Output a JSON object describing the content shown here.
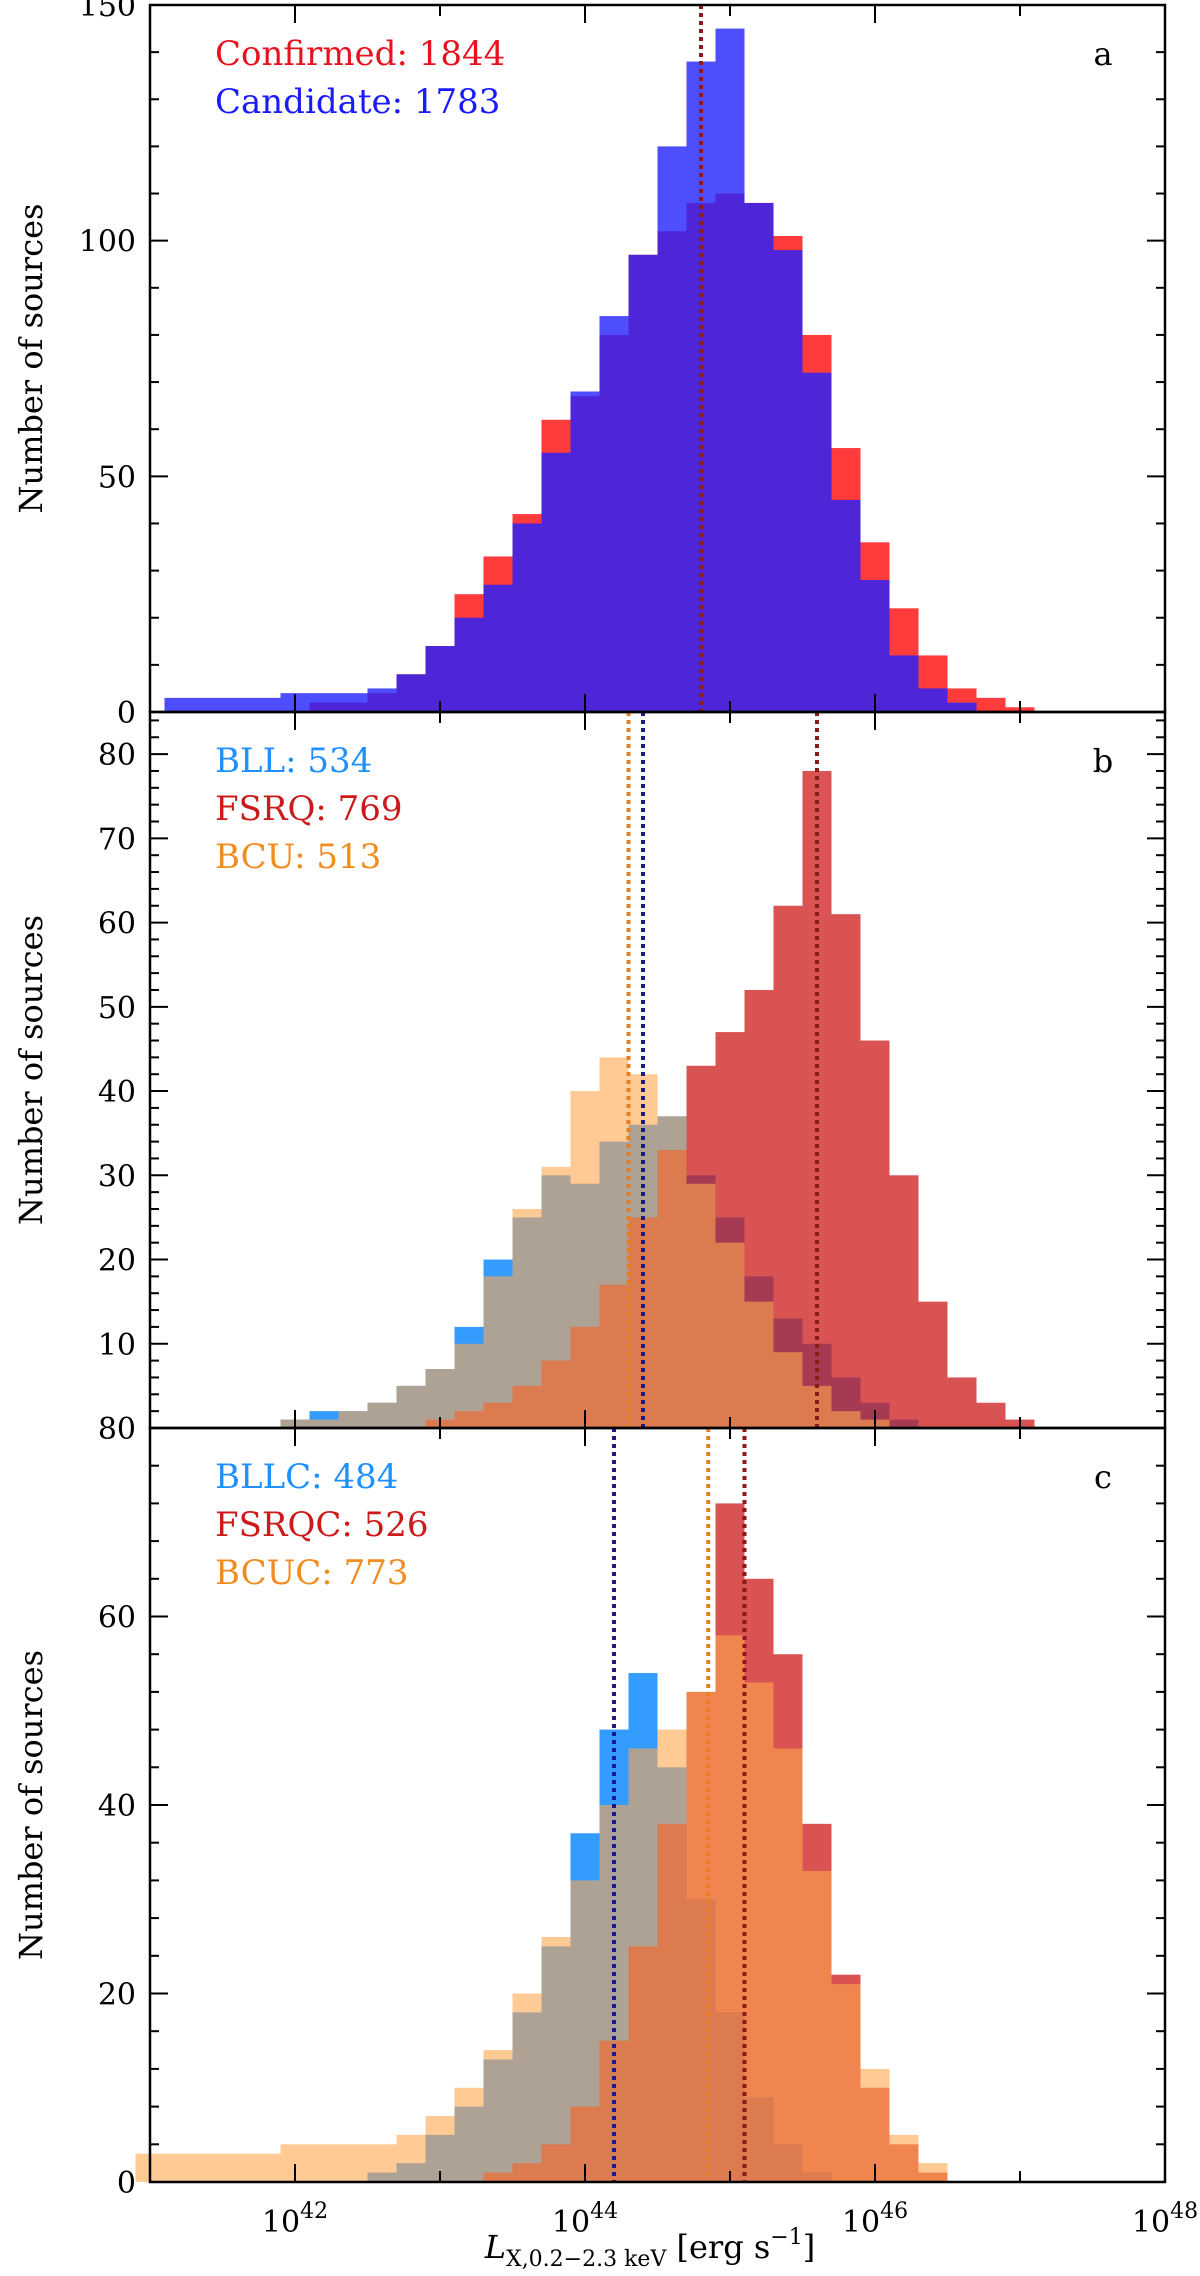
{
  "chart_data": [
    {
      "panel": "a",
      "type": "bar",
      "ylabel": "Number of sources",
      "ylim": [
        0,
        150
      ],
      "yticks": [
        0,
        50,
        100,
        150
      ],
      "x_range_log10": [
        41,
        48
      ],
      "legend_position": "top-left",
      "series": [
        {
          "name": "Confirmed: 1844",
          "legend_color": "#e8121e",
          "color": "#ff0a0a",
          "opacity": 0.8,
          "x_log10": [
            42.2,
            42.4,
            42.6,
            42.8,
            43.0,
            43.2,
            43.4,
            43.6,
            43.8,
            44.0,
            44.2,
            44.4,
            44.6,
            44.8,
            45.0,
            45.2,
            45.4,
            45.6,
            45.8,
            46.0,
            46.2,
            46.4,
            46.6,
            46.8,
            47.0
          ],
          "values": [
            2,
            2,
            4,
            8,
            14,
            25,
            33,
            42,
            62,
            67,
            80,
            97,
            102,
            108,
            110,
            108,
            101,
            80,
            56,
            36,
            22,
            12,
            5,
            3,
            1
          ]
        },
        {
          "name": "Candidate: 1783",
          "legend_color": "#1a1aff",
          "color": "#2222ff",
          "opacity": 0.8,
          "x_log10": [
            41.2,
            41.4,
            41.6,
            41.8,
            42.0,
            42.2,
            42.4,
            42.6,
            42.8,
            43.0,
            43.2,
            43.4,
            43.6,
            43.8,
            44.0,
            44.2,
            44.4,
            44.6,
            44.8,
            45.0,
            45.2,
            45.4,
            45.6,
            45.8,
            46.0,
            46.2,
            46.4,
            46.6
          ],
          "values": [
            3,
            3,
            3,
            3,
            4,
            4,
            4,
            5,
            8,
            14,
            20,
            27,
            40,
            55,
            68,
            84,
            97,
            120,
            138,
            145,
            108,
            98,
            72,
            45,
            28,
            12,
            5,
            2
          ]
        }
      ],
      "medians_log10": [
        {
          "value": 44.8,
          "color": "#1a1a8c"
        },
        {
          "value": 44.8,
          "color": "#8c1a1a"
        }
      ],
      "panel_label": "a"
    },
    {
      "panel": "b",
      "type": "bar",
      "ylabel": "Number of sources",
      "ylim": [
        0,
        85
      ],
      "yticks": [
        10,
        20,
        30,
        40,
        50,
        60,
        70,
        80
      ],
      "x_range_log10": [
        41,
        48
      ],
      "legend_position": "top-left",
      "series": [
        {
          "name": "BLL: 534",
          "legend_color": "#1e90ff",
          "color": "#1e90ff",
          "opacity": 0.9,
          "x_log10": [
            42.0,
            42.2,
            42.4,
            42.6,
            42.8,
            43.0,
            43.2,
            43.4,
            43.6,
            43.8,
            44.0,
            44.2,
            44.4,
            44.6,
            44.8,
            45.0,
            45.2,
            45.4,
            45.6,
            45.8,
            46.0,
            46.2
          ],
          "values": [
            1,
            2,
            2,
            3,
            5,
            7,
            12,
            20,
            25,
            30,
            29,
            34,
            36,
            37,
            30,
            25,
            18,
            13,
            10,
            6,
            3,
            1
          ]
        },
        {
          "name": "FSRQ: 769",
          "legend_color": "#cc1a1a",
          "color": "#cc1a1a",
          "opacity": 0.75,
          "x_log10": [
            43.0,
            43.2,
            43.4,
            43.6,
            43.8,
            44.0,
            44.2,
            44.4,
            44.6,
            44.8,
            45.0,
            45.2,
            45.4,
            45.6,
            45.8,
            46.0,
            46.2,
            46.4,
            46.6,
            46.8,
            47.0
          ],
          "values": [
            1,
            2,
            3,
            5,
            8,
            12,
            17,
            25,
            33,
            43,
            47,
            52,
            62,
            78,
            61,
            46,
            30,
            15,
            6,
            3,
            1
          ]
        },
        {
          "name": "BCU: 513",
          "legend_color": "#f28c1e",
          "color": "#ffa64d",
          "opacity": 0.6,
          "x_log10": [
            42.0,
            42.2,
            42.4,
            42.6,
            42.8,
            43.0,
            43.2,
            43.4,
            43.6,
            43.8,
            44.0,
            44.2,
            44.4,
            44.6,
            44.8,
            45.0,
            45.2,
            45.4,
            45.6,
            45.8,
            46.0
          ],
          "values": [
            1,
            1,
            2,
            3,
            5,
            7,
            10,
            18,
            26,
            31,
            40,
            44,
            42,
            37,
            29,
            22,
            15,
            9,
            5,
            2,
            1
          ]
        }
      ],
      "medians_log10": [
        {
          "value": 44.3,
          "color": "#e67e22"
        },
        {
          "value": 44.4,
          "color": "#1a1a8c"
        },
        {
          "value": 45.6,
          "color": "#8c1a1a"
        }
      ],
      "panel_label": "b"
    },
    {
      "panel": "c",
      "type": "bar",
      "ylabel": "Number of sources",
      "ylim": [
        0,
        80
      ],
      "yticks": [
        0,
        20,
        40,
        60,
        80
      ],
      "x_range_log10": [
        41,
        48
      ],
      "xticks_log10": [
        42,
        44,
        46,
        48
      ],
      "xlabel": "L_X,0.2–2.3 keV [erg s⁻¹]",
      "legend_position": "top-left",
      "series": [
        {
          "name": "BLLC: 484",
          "legend_color": "#1e90ff",
          "color": "#1e90ff",
          "opacity": 0.9,
          "x_log10": [
            42.6,
            42.8,
            43.0,
            43.2,
            43.4,
            43.6,
            43.8,
            44.0,
            44.2,
            44.4,
            44.6,
            44.8,
            45.0,
            45.2,
            45.4,
            45.6
          ],
          "values": [
            1,
            2,
            5,
            8,
            13,
            18,
            25,
            37,
            48,
            54,
            44,
            30,
            18,
            9,
            4,
            1
          ]
        },
        {
          "name": "FSRQC: 526",
          "legend_color": "#cc1a1a",
          "color": "#cc1a1a",
          "opacity": 0.75,
          "x_log10": [
            43.4,
            43.6,
            43.8,
            44.0,
            44.2,
            44.4,
            44.6,
            44.8,
            45.0,
            45.2,
            45.4,
            45.6,
            45.8,
            46.0,
            46.2,
            46.4
          ],
          "values": [
            1,
            2,
            4,
            8,
            15,
            25,
            38,
            52,
            72,
            64,
            56,
            38,
            22,
            10,
            4,
            1
          ]
        },
        {
          "name": "BCUC: 773",
          "legend_color": "#f28c1e",
          "color": "#ffa64d",
          "opacity": 0.6,
          "x_log10": [
            41.0,
            41.2,
            41.4,
            41.6,
            41.8,
            42.0,
            42.2,
            42.4,
            42.6,
            42.8,
            43.0,
            43.2,
            43.4,
            43.6,
            43.8,
            44.0,
            44.2,
            44.4,
            44.6,
            44.8,
            45.0,
            45.2,
            45.4,
            45.6,
            45.8,
            46.0,
            46.2,
            46.4
          ],
          "values": [
            3,
            3,
            3,
            3,
            3,
            4,
            4,
            4,
            4,
            5,
            7,
            10,
            14,
            20,
            26,
            32,
            40,
            46,
            48,
            52,
            58,
            53,
            46,
            33,
            21,
            12,
            5,
            2
          ]
        }
      ],
      "medians_log10": [
        {
          "value": 44.2,
          "color": "#1a1a8c"
        },
        {
          "value": 44.85,
          "color": "#e67e22"
        },
        {
          "value": 45.1,
          "color": "#8c1a1a"
        }
      ],
      "panel_label": "c"
    }
  ],
  "xlabel_parts": {
    "main": "L",
    "subscript": "X,0.2−2.3 keV",
    "units": " [erg s",
    "units_sup": "−1",
    "units_close": "]"
  }
}
